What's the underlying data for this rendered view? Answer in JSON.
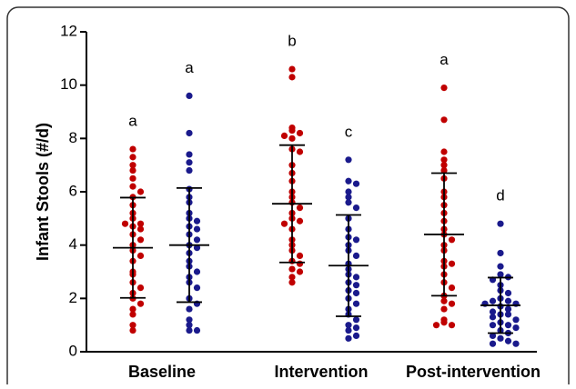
{
  "chart_data": {
    "type": "dot",
    "ylabel": "Infant Stools (#/d)",
    "categories": [
      "Baseline",
      "Intervention",
      "Post-intervention"
    ],
    "ylim": [
      0,
      12
    ],
    "yticks": [
      0,
      2,
      4,
      6,
      8,
      10,
      12
    ],
    "series": [
      {
        "color": "#c00000",
        "annotations": [
          "a",
          "b",
          "a"
        ],
        "means": [
          3.9,
          5.55,
          4.4
        ],
        "sd": [
          1.88,
          2.2,
          2.3
        ],
        "values": [
          [
            7.6,
            7.3,
            7.0,
            6.8,
            6.5,
            6.2,
            6.0,
            5.8,
            5.5,
            5.2,
            5.0,
            4.8,
            4.8,
            4.7,
            4.6,
            4.4,
            4.2,
            4.0,
            3.8,
            3.6,
            3.4,
            3.0,
            2.9,
            2.6,
            2.4,
            2.2,
            2.0,
            1.8,
            1.6,
            1.4,
            1.0,
            0.8
          ],
          [
            10.6,
            10.3,
            8.4,
            8.3,
            8.2,
            8.1,
            8.0,
            7.6,
            7.5,
            7.0,
            6.7,
            6.4,
            6.0,
            5.8,
            5.6,
            5.4,
            5.2,
            5.0,
            4.9,
            4.8,
            4.6,
            4.2,
            4.0,
            3.8,
            3.6,
            3.4,
            3.3,
            3.1,
            3.0,
            2.8,
            2.6
          ],
          [
            9.9,
            8.7,
            7.5,
            7.2,
            7.0,
            6.8,
            6.5,
            6.0,
            5.8,
            5.5,
            5.2,
            4.9,
            4.6,
            4.4,
            4.2,
            4.0,
            3.8,
            3.4,
            3.3,
            3.2,
            2.9,
            2.6,
            2.4,
            2.1,
            1.9,
            1.8,
            1.6,
            1.2,
            1.1,
            1.0,
            1.0
          ]
        ]
      },
      {
        "color": "#1a1a8c",
        "annotations": [
          "a",
          "c",
          "d"
        ],
        "means": [
          4.0,
          3.23,
          1.74
        ],
        "sd": [
          2.14,
          1.9,
          1.04
        ],
        "values": [
          [
            9.6,
            8.2,
            7.4,
            7.1,
            6.8,
            6.1,
            5.8,
            5.6,
            5.2,
            5.0,
            4.9,
            4.7,
            4.6,
            4.4,
            4.2,
            4.0,
            3.9,
            3.7,
            3.4,
            3.2,
            3.0,
            2.8,
            2.6,
            2.4,
            2.0,
            1.8,
            1.6,
            1.2,
            1.0,
            0.8,
            0.8
          ],
          [
            7.2,
            6.4,
            6.3,
            6.0,
            5.8,
            5.6,
            5.4,
            5.0,
            4.6,
            4.3,
            4.2,
            4.0,
            3.8,
            3.6,
            3.3,
            3.1,
            2.9,
            2.8,
            2.6,
            2.5,
            2.3,
            2.2,
            2.0,
            1.8,
            1.6,
            1.4,
            1.2,
            1.0,
            0.9,
            0.8,
            0.6,
            0.5
          ],
          [
            4.8,
            3.7,
            3.2,
            2.9,
            2.8,
            2.7,
            2.5,
            2.3,
            2.2,
            2.0,
            1.9,
            1.9,
            1.8,
            1.8,
            1.7,
            1.6,
            1.5,
            1.4,
            1.4,
            1.3,
            1.2,
            1.1,
            1.0,
            1.0,
            0.9,
            0.8,
            0.7,
            0.6,
            0.5,
            0.4,
            0.3,
            0.3
          ]
        ]
      }
    ]
  }
}
